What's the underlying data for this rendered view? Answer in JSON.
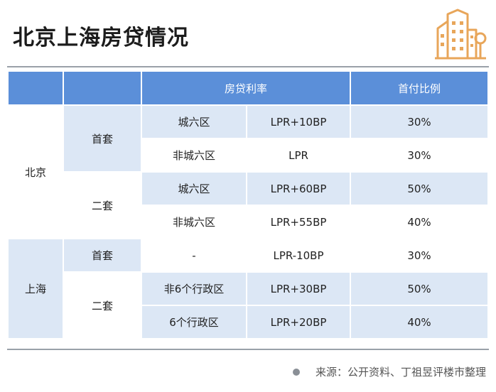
{
  "title": "北京上海房贷情况",
  "header": {
    "rate_label": "房贷利率",
    "down_label": "首付比例"
  },
  "rows": [
    {
      "city": "北京",
      "type": "首套",
      "district": "城六区",
      "lpr": "LPR+10BP",
      "down": "30%"
    },
    {
      "city": "北京",
      "type": "首套",
      "district": "非城六区",
      "lpr": "LPR",
      "down": "30%"
    },
    {
      "city": "北京",
      "type": "二套",
      "district": "城六区",
      "lpr": "LPR+60BP",
      "down": "50%"
    },
    {
      "city": "北京",
      "type": "二套",
      "district": "非城六区",
      "lpr": "LPR+55BP",
      "down": "40%"
    },
    {
      "city": "上海",
      "type": "首套",
      "district": "-",
      "lpr": "LPR-10BP",
      "down": "30%"
    },
    {
      "city": "上海",
      "type": "二套",
      "district": "非6个行政区",
      "lpr": "LPR+30BP",
      "down": "50%"
    },
    {
      "city": "上海",
      "type": "二套",
      "district": "6个行政区",
      "lpr": "LPR+20BP",
      "down": "40%"
    }
  ],
  "source": "来源：公开资料、丁祖昱评楼市整理",
  "colors": {
    "header_bg": "#5b8fd9",
    "cell_light": "#dce7f5",
    "logo_accent": "#e8a65a"
  },
  "logo_icon": "buildings-icon"
}
